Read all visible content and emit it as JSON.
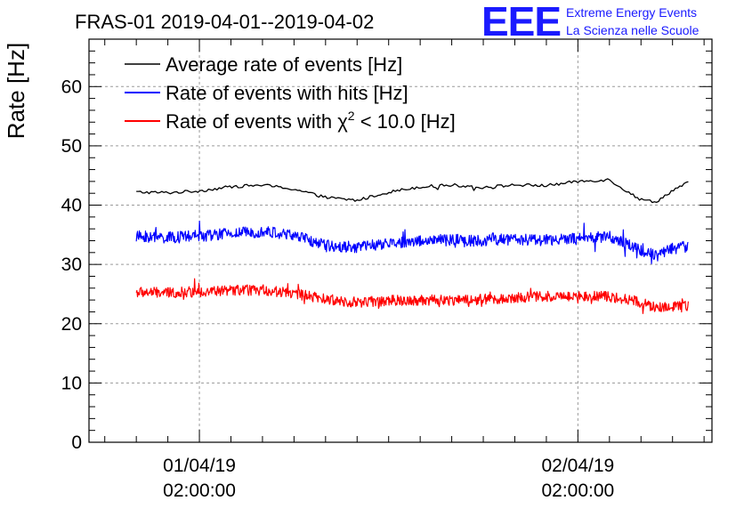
{
  "chart_data": {
    "type": "line",
    "title": "FRAS-01 2019-04-01--2019-04-02",
    "ylabel": "Rate [Hz]",
    "xlabel": "",
    "ylim": [
      0,
      68
    ],
    "xlim_hours": [
      -5.0,
      34.5
    ],
    "grid": true,
    "y_ticks": [
      0,
      10,
      20,
      30,
      40,
      50,
      60
    ],
    "x_tick_labels": [
      {
        "hour": 2,
        "date": "01/04/19",
        "time": "02:00:00"
      },
      {
        "hour": 26,
        "date": "02/04/19",
        "time": "02:00:00"
      }
    ],
    "legend": {
      "placement": "top-left",
      "entries": [
        {
          "label": "Average rate of events [Hz]",
          "color": "#000000"
        },
        {
          "label": "Rate of events with hits [Hz]",
          "color": "#0000ff"
        },
        {
          "label_prefix": "Rate of events with ",
          "label_symbol": "χ",
          "label_sup": "2",
          "label_suffix": " < 10.0 [Hz]",
          "color": "#ff0000"
        }
      ]
    },
    "series": [
      {
        "name": "Average rate of events [Hz]",
        "color": "#000000",
        "noise": 0.25,
        "x_hours": [
          -2,
          0,
          2,
          4,
          6,
          8,
          10,
          12,
          14,
          16,
          18,
          20,
          22,
          24,
          26,
          28,
          29,
          30,
          31,
          32,
          33
        ],
        "values": [
          42.2,
          42.1,
          42.4,
          43.1,
          43.4,
          42.7,
          41.3,
          40.8,
          42.2,
          43.1,
          43.4,
          43.0,
          43.4,
          43.3,
          44.0,
          44.3,
          42.5,
          40.9,
          40.6,
          42.5,
          43.8
        ]
      },
      {
        "name": "Rate of events with hits [Hz]",
        "color": "#0000ff",
        "noise": 1.0,
        "x_hours": [
          -2,
          0,
          2,
          4,
          6,
          8,
          10,
          12,
          14,
          16,
          18,
          20,
          22,
          24,
          26,
          28,
          29,
          30,
          31,
          32,
          33
        ],
        "values": [
          34.7,
          34.5,
          34.8,
          35.2,
          35.6,
          34.9,
          33.2,
          32.9,
          33.5,
          34.0,
          34.1,
          34.0,
          34.3,
          34.1,
          34.3,
          34.8,
          33.5,
          32.5,
          31.5,
          32.7,
          33.1
        ]
      },
      {
        "name": "Rate of events with χ2 < 10.0 [Hz]",
        "color": "#ff0000",
        "noise": 0.9,
        "x_hours": [
          -2,
          0,
          2,
          4,
          6,
          8,
          10,
          12,
          14,
          16,
          18,
          20,
          22,
          24,
          26,
          28,
          29,
          30,
          31,
          32,
          33
        ],
        "values": [
          25.3,
          25.2,
          25.4,
          25.6,
          25.7,
          25.1,
          24.1,
          23.6,
          23.9,
          24.0,
          24.0,
          24.1,
          24.4,
          24.6,
          24.7,
          24.6,
          24.2,
          23.6,
          22.6,
          22.9,
          23.0
        ]
      }
    ]
  },
  "logo": {
    "letters": "EEE",
    "line1": "Extreme Energy Events",
    "line2": "La Scienza nelle Scuole"
  }
}
